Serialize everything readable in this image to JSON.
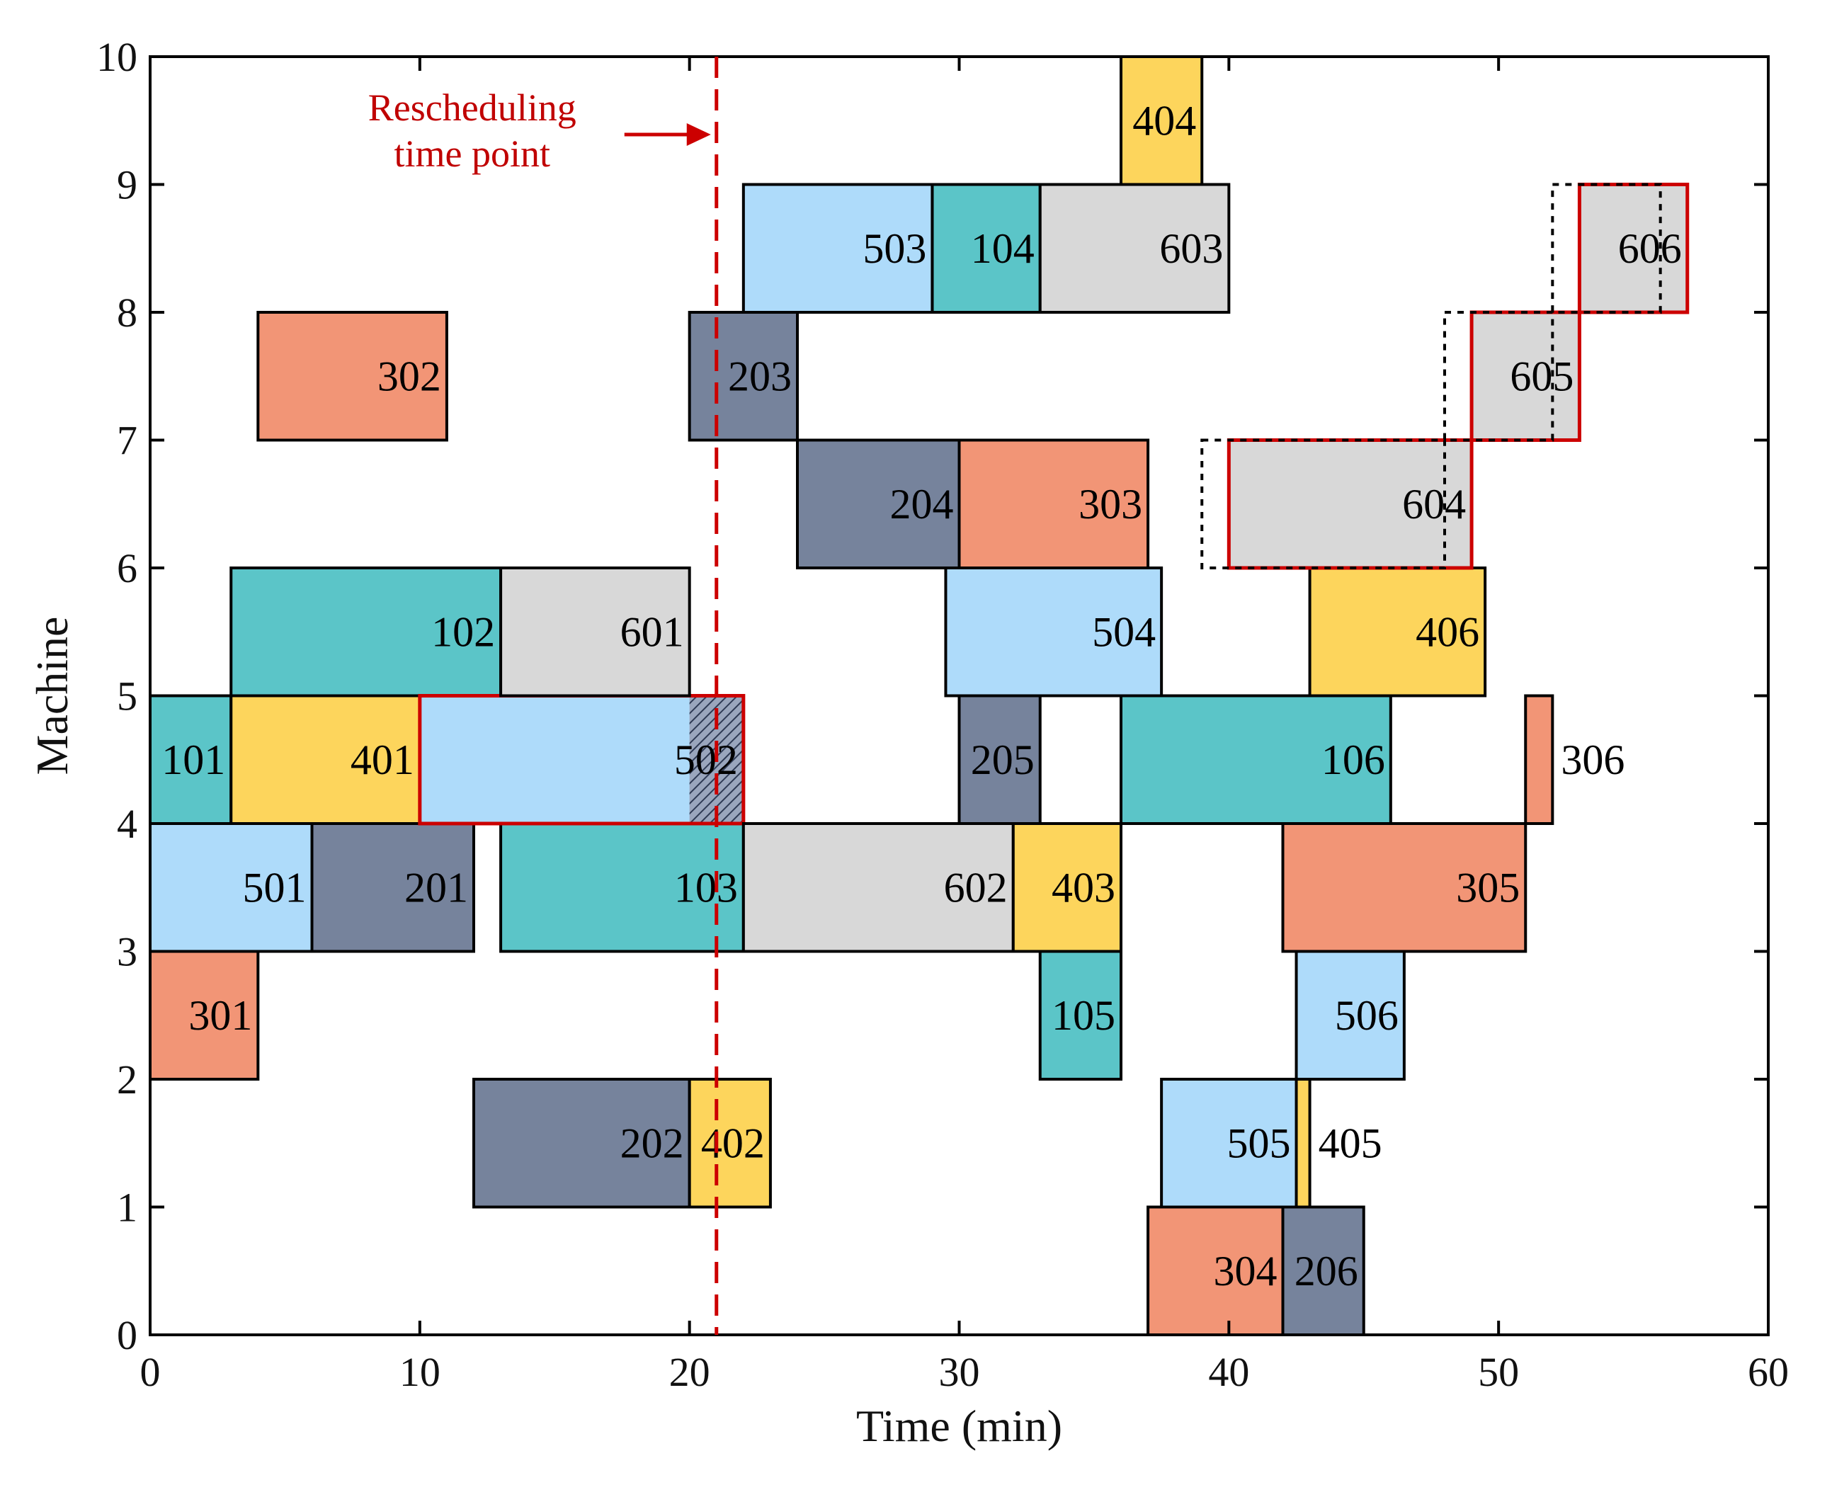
{
  "chart_data": {
    "type": "gantt",
    "xlabel": "Time (min)",
    "ylabel": "Machine",
    "xlim": [
      0,
      60
    ],
    "ylim": [
      0,
      10
    ],
    "xticks": [
      0,
      10,
      20,
      30,
      40,
      50,
      60
    ],
    "yticks": [
      0,
      1,
      2,
      3,
      4,
      5,
      6,
      7,
      8,
      9,
      10
    ],
    "colors": {
      "job1": "#5bc5c8",
      "job2": "#76839c",
      "job3": "#f29576",
      "job4": "#fdd55c",
      "job5": "#aedbfa",
      "job6": "#d8d8d8",
      "highlight": "#cc0000",
      "reschedule_line": "#cc0000",
      "dotted_outline": "#000000"
    },
    "rescheduling": {
      "time": 21,
      "label_line1": "Rescheduling",
      "label_line2": "time point"
    },
    "operations": [
      {
        "label": "101",
        "job": 1,
        "machine": 5,
        "start": 0,
        "end": 3
      },
      {
        "label": "102",
        "job": 1,
        "machine": 6,
        "start": 3,
        "end": 13
      },
      {
        "label": "103",
        "job": 1,
        "machine": 4,
        "start": 13,
        "end": 22
      },
      {
        "label": "104",
        "job": 1,
        "machine": 9,
        "start": 29,
        "end": 33
      },
      {
        "label": "105",
        "job": 1,
        "machine": 3,
        "start": 33,
        "end": 36
      },
      {
        "label": "106",
        "job": 1,
        "machine": 5,
        "start": 36,
        "end": 46
      },
      {
        "label": "201",
        "job": 2,
        "machine": 4,
        "start": 6,
        "end": 12
      },
      {
        "label": "202",
        "job": 2,
        "machine": 2,
        "start": 12,
        "end": 20
      },
      {
        "label": "203",
        "job": 2,
        "machine": 8,
        "start": 20,
        "end": 24
      },
      {
        "label": "204",
        "job": 2,
        "machine": 7,
        "start": 24,
        "end": 30
      },
      {
        "label": "205",
        "job": 2,
        "machine": 5,
        "start": 30,
        "end": 33
      },
      {
        "label": "206",
        "job": 2,
        "machine": 1,
        "start": 42,
        "end": 45
      },
      {
        "label": "301",
        "job": 3,
        "machine": 3,
        "start": 0,
        "end": 4
      },
      {
        "label": "302",
        "job": 3,
        "machine": 8,
        "start": 4,
        "end": 11
      },
      {
        "label": "303",
        "job": 3,
        "machine": 7,
        "start": 30,
        "end": 37
      },
      {
        "label": "304",
        "job": 3,
        "machine": 1,
        "start": 37,
        "end": 42
      },
      {
        "label": "305",
        "job": 3,
        "machine": 4,
        "start": 42,
        "end": 51
      },
      {
        "label": "306",
        "job": 3,
        "machine": 5,
        "start": 51,
        "end": 52,
        "outside_label": true
      },
      {
        "label": "401",
        "job": 4,
        "machine": 5,
        "start": 3,
        "end": 10
      },
      {
        "label": "402",
        "job": 4,
        "machine": 2,
        "start": 20,
        "end": 23
      },
      {
        "label": "403",
        "job": 4,
        "machine": 4,
        "start": 32,
        "end": 36
      },
      {
        "label": "404",
        "job": 4,
        "machine": 10,
        "start": 36,
        "end": 39
      },
      {
        "label": "405",
        "job": 4,
        "machine": 2,
        "start": 42,
        "end": 43,
        "outside_label": true
      },
      {
        "label": "406",
        "job": 4,
        "machine": 6,
        "start": 43,
        "end": 49.5
      },
      {
        "label": "501",
        "job": 5,
        "machine": 4,
        "start": 0,
        "end": 6
      },
      {
        "label": "502",
        "job": 5,
        "machine": 5,
        "start": 10,
        "end": 22,
        "highlight": true,
        "hatch_from": 20
      },
      {
        "label": "503",
        "job": 5,
        "machine": 9,
        "start": 22,
        "end": 29
      },
      {
        "label": "504",
        "job": 5,
        "machine": 6,
        "start": 29.5,
        "end": 37.5
      },
      {
        "label": "505",
        "job": 5,
        "machine": 2,
        "start": 37.5,
        "end": 42.5
      },
      {
        "label": "506",
        "job": 5,
        "machine": 3,
        "start": 42.5,
        "end": 46.5
      },
      {
        "label": "601",
        "job": 6,
        "machine": 6,
        "start": 13,
        "end": 20
      },
      {
        "label": "602",
        "job": 6,
        "machine": 4,
        "start": 22,
        "end": 32
      },
      {
        "label": "603",
        "job": 6,
        "machine": 9,
        "start": 33,
        "end": 40
      },
      {
        "label": "604",
        "job": 6,
        "machine": 7,
        "start": 40,
        "end": 49,
        "highlight": true
      },
      {
        "label": "605",
        "job": 6,
        "machine": 8,
        "start": 49,
        "end": 53,
        "highlight": true
      },
      {
        "label": "606",
        "job": 6,
        "machine": 9,
        "start": 53,
        "end": 57,
        "highlight": true
      }
    ],
    "original_outlines": [
      {
        "ref": "604",
        "machine": 7,
        "start": 39,
        "end": 48
      },
      {
        "ref": "605",
        "machine": 8,
        "start": 48,
        "end": 52
      },
      {
        "ref": "606",
        "machine": 9,
        "start": 52,
        "end": 56
      }
    ]
  }
}
